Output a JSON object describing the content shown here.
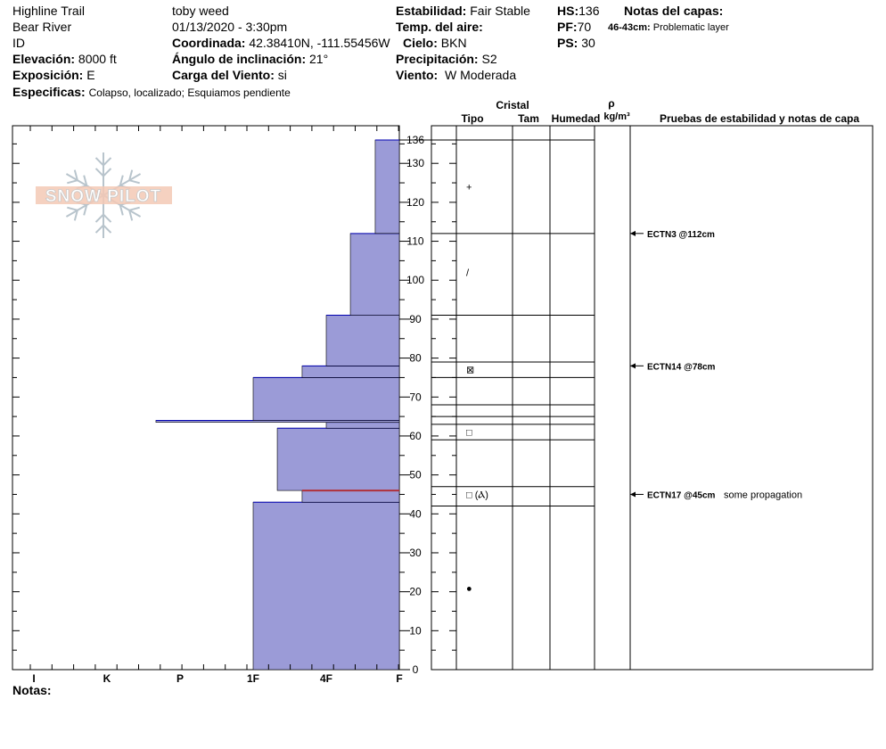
{
  "header": {
    "location": "Highline Trail",
    "region": "Bear River",
    "id_label": "ID",
    "elevation_label": "Elevación:",
    "elevation": "8000 ft",
    "aspect_label": "Exposición:",
    "aspect": "E",
    "specifics_label": "Especificas:",
    "specifics": "Colapso, localizado;  Esquiamos pendiente",
    "observer": "toby weed",
    "datetime": "01/13/2020 - 3:30pm",
    "coord_label": "Coordinada:",
    "coordinates": "42.38410N, -111.55456W",
    "slope_label": "Ángulo de inclinación:",
    "slope": "21°",
    "wind_load_label": "Carga del Viento:",
    "wind_load": "si",
    "stability_label": "Estabilidad:",
    "stability": "Fair Stable",
    "air_temp_label": "Temp. del aire:",
    "sky_label": "Cielo:",
    "sky": "BKN",
    "precip_label": "Precipitación:",
    "precip": "S2",
    "wind_label": "Viento:",
    "wind": "W Moderada",
    "hs_label": "HS:",
    "hs": "136",
    "pf_label": "PF:",
    "pf": "70",
    "ps_label": "PS:",
    "ps": "30",
    "layer_notes_label": "Notas del capas:",
    "layer_note_range": "46-43cm:",
    "layer_note_text": "Problematic layer"
  },
  "logo_text": "SNOW PILOT",
  "notes_label": "Notas:",
  "table_headers": {
    "cristal": "Cristal",
    "tipo": "Tipo",
    "tam": "Tam",
    "humedad": "Humedad",
    "rho": "ρ",
    "density_unit": "kg/m³",
    "tests": "Pruebas de estabilidad y notas de capa"
  },
  "colors": {
    "hardness_fill": "#9b9bd7",
    "hardness_edge": "#0000b0",
    "problem_layer": "#b0303a"
  },
  "chart_data": {
    "type": "bar",
    "title": "",
    "orientation": "horizontal",
    "xlabel": "",
    "ylabel": "",
    "x_categories": [
      "I",
      "K",
      "P",
      "1F",
      "4F",
      "F"
    ],
    "x_category_values": [
      5,
      4,
      3,
      2,
      1,
      0
    ],
    "hardness_scale_max": 5.5,
    "height_range_cm": [
      0,
      136
    ],
    "height_ticks": [
      0,
      10,
      20,
      30,
      40,
      50,
      60,
      70,
      80,
      90,
      100,
      110,
      120,
      130
    ],
    "top_label": "136",
    "layers": [
      {
        "bottom": 0,
        "top": 43,
        "hardness": 2.0
      },
      {
        "bottom": 43,
        "top": 46,
        "hardness": 1.33
      },
      {
        "bottom": 46,
        "top": 62,
        "hardness": 1.67
      },
      {
        "bottom": 62,
        "top": 63.5,
        "hardness": 1.0
      },
      {
        "bottom": 63.5,
        "top": 64,
        "hardness": 3.33
      },
      {
        "bottom": 64,
        "top": 75,
        "hardness": 2.0
      },
      {
        "bottom": 75,
        "top": 78,
        "hardness": 1.33
      },
      {
        "bottom": 78,
        "top": 91,
        "hardness": 1.0
      },
      {
        "bottom": 91,
        "top": 112,
        "hardness": 0.67
      },
      {
        "bottom": 112,
        "top": 136,
        "hardness": 0.33
      }
    ],
    "problem_layer_cm": 46,
    "boundaries_cm": [
      136,
      112,
      91,
      79,
      75,
      68,
      65,
      63,
      59,
      47,
      42
    ],
    "grain_symbols": [
      {
        "y": 124,
        "symbol": "+"
      },
      {
        "y": 102,
        "symbol": "/"
      },
      {
        "y": 77,
        "symbol": "⊠"
      },
      {
        "y": 61,
        "symbol": "□"
      },
      {
        "y": 45,
        "symbol": "□ (Ⲁ)"
      },
      {
        "y": 21,
        "symbol": "●"
      }
    ],
    "tests": [
      {
        "y": 112,
        "label": "ECTN3 @112cm",
        "note": ""
      },
      {
        "y": 78,
        "label": "ECTN14 @78cm",
        "note": ""
      },
      {
        "y": 45,
        "label": "ECTN17 @45cm",
        "note": "some propagation"
      }
    ]
  }
}
